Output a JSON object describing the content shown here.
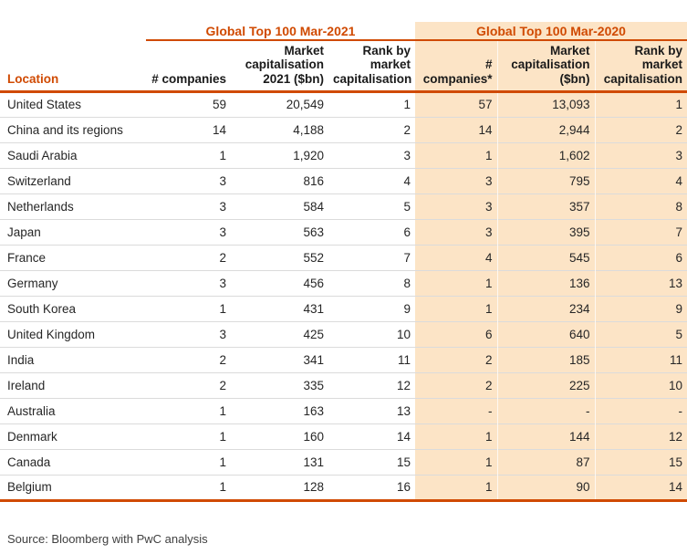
{
  "colors": {
    "accent": "#D04A02",
    "highlight_bg": "#FCE4C6",
    "row_line": "#DBDBDB"
  },
  "table": {
    "group_headers": {
      "y2021": "Global Top 100 Mar-2021",
      "y2020": "Global Top 100 Mar-2020"
    },
    "columns": {
      "location": "Location",
      "companies_2021": "# companies",
      "mktcap_2021": "Market\ncapitalisation\n2021 ($bn)",
      "rank_2021": "Rank by\nmarket\ncapitalisation",
      "companies_2020": "# companies*",
      "mktcap_2020": "Market\ncapitalisation\n($bn)",
      "rank_2020": "Rank by\nmarket\ncapitalisation"
    },
    "rows": [
      {
        "location": "United States",
        "companies_2021": "59",
        "mktcap_2021": "20,549",
        "rank_2021": "1",
        "companies_2020": "57",
        "mktcap_2020": "13,093",
        "rank_2020": "1"
      },
      {
        "location": "China and its regions",
        "companies_2021": "14",
        "mktcap_2021": "4,188",
        "rank_2021": "2",
        "companies_2020": "14",
        "mktcap_2020": "2,944",
        "rank_2020": "2"
      },
      {
        "location": "Saudi Arabia",
        "companies_2021": "1",
        "mktcap_2021": "1,920",
        "rank_2021": "3",
        "companies_2020": "1",
        "mktcap_2020": "1,602",
        "rank_2020": "3"
      },
      {
        "location": "Switzerland",
        "companies_2021": "3",
        "mktcap_2021": "816",
        "rank_2021": "4",
        "companies_2020": "3",
        "mktcap_2020": "795",
        "rank_2020": "4"
      },
      {
        "location": "Netherlands",
        "companies_2021": "3",
        "mktcap_2021": "584",
        "rank_2021": "5",
        "companies_2020": "3",
        "mktcap_2020": "357",
        "rank_2020": "8"
      },
      {
        "location": "Japan",
        "companies_2021": "3",
        "mktcap_2021": "563",
        "rank_2021": "6",
        "companies_2020": "3",
        "mktcap_2020": "395",
        "rank_2020": "7"
      },
      {
        "location": "France",
        "companies_2021": "2",
        "mktcap_2021": "552",
        "rank_2021": "7",
        "companies_2020": "4",
        "mktcap_2020": "545",
        "rank_2020": "6"
      },
      {
        "location": "Germany",
        "companies_2021": "3",
        "mktcap_2021": "456",
        "rank_2021": "8",
        "companies_2020": "1",
        "mktcap_2020": "136",
        "rank_2020": "13"
      },
      {
        "location": "South Korea",
        "companies_2021": "1",
        "mktcap_2021": "431",
        "rank_2021": "9",
        "companies_2020": "1",
        "mktcap_2020": "234",
        "rank_2020": "9"
      },
      {
        "location": "United Kingdom",
        "companies_2021": "3",
        "mktcap_2021": "425",
        "rank_2021": "10",
        "companies_2020": "6",
        "mktcap_2020": "640",
        "rank_2020": "5"
      },
      {
        "location": "India",
        "companies_2021": "2",
        "mktcap_2021": "341",
        "rank_2021": "11",
        "companies_2020": "2",
        "mktcap_2020": "185",
        "rank_2020": "11"
      },
      {
        "location": "Ireland",
        "companies_2021": "2",
        "mktcap_2021": "335",
        "rank_2021": "12",
        "companies_2020": "2",
        "mktcap_2020": "225",
        "rank_2020": "10"
      },
      {
        "location": "Australia",
        "companies_2021": "1",
        "mktcap_2021": "163",
        "rank_2021": "13",
        "companies_2020": "-",
        "mktcap_2020": "-",
        "rank_2020": "-"
      },
      {
        "location": "Denmark",
        "companies_2021": "1",
        "mktcap_2021": "160",
        "rank_2021": "14",
        "companies_2020": "1",
        "mktcap_2020": "144",
        "rank_2020": "12"
      },
      {
        "location": "Canada",
        "companies_2021": "1",
        "mktcap_2021": "131",
        "rank_2021": "15",
        "companies_2020": "1",
        "mktcap_2020": "87",
        "rank_2020": "15"
      },
      {
        "location": "Belgium",
        "companies_2021": "1",
        "mktcap_2021": "128",
        "rank_2021": "16",
        "companies_2020": "1",
        "mktcap_2020": "90",
        "rank_2020": "14"
      }
    ]
  },
  "source": "Source: Bloomberg with PwC analysis"
}
